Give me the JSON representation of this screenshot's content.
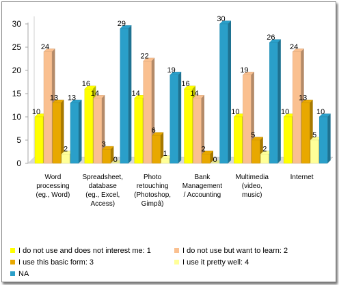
{
  "chart_data": {
    "type": "bar",
    "categories": [
      "Word\nprocessing\n(eg., Word)",
      "Spreadsheet,\ndatabase\n(eg., Excel,\nAccess)",
      "Photo\nretouching\n(Photoshop,\nGimpâ)",
      "Bank\nManagement\n/ Accounting",
      "Multimedia\n(video,\nmusic)",
      "Internet"
    ],
    "series": [
      {
        "name": "I do not use and does not interest me: 1",
        "color": "#ffff00",
        "values": [
          10,
          16,
          14,
          16,
          10,
          10
        ]
      },
      {
        "name": "I do not use but want to learn: 2",
        "color": "#fac090",
        "values": [
          24,
          14,
          22,
          14,
          19,
          24
        ]
      },
      {
        "name": "I use this basic form: 3",
        "color": "#e8a800",
        "values": [
          13,
          3,
          6,
          2,
          5,
          13
        ]
      },
      {
        "name": "I use it pretty well: 4",
        "color": "#ffff99",
        "values": [
          2,
          0,
          1,
          0,
          2,
          5
        ]
      },
      {
        "name": "NA",
        "color": "#2a9fc9",
        "values": [
          13,
          29,
          19,
          30,
          26,
          10
        ]
      }
    ],
    "yticks": [
      "0",
      "5",
      "10",
      "15",
      "20",
      "25",
      "30"
    ],
    "ylim": [
      0,
      30
    ],
    "grid": false,
    "legend_position": "bottom",
    "title": "",
    "xlabel": "",
    "ylabel": ""
  }
}
